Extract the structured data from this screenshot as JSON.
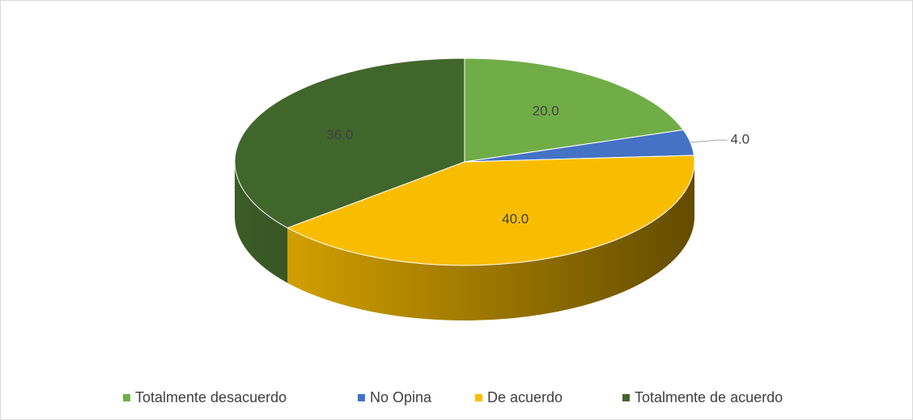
{
  "chart_data": {
    "type": "pie",
    "categories": [
      "Totalmente desacuerdo",
      "No Opina",
      "De acuerdo",
      "Totalmente de acuerdo"
    ],
    "values": [
      20,
      4,
      40,
      36
    ],
    "value_labels": [
      "20.0",
      "4.0",
      "40.0",
      "36.0"
    ],
    "colors": [
      "#70ad47",
      "#4472c4",
      "#f9bd00",
      "#41662b"
    ],
    "legend": "bottom"
  }
}
